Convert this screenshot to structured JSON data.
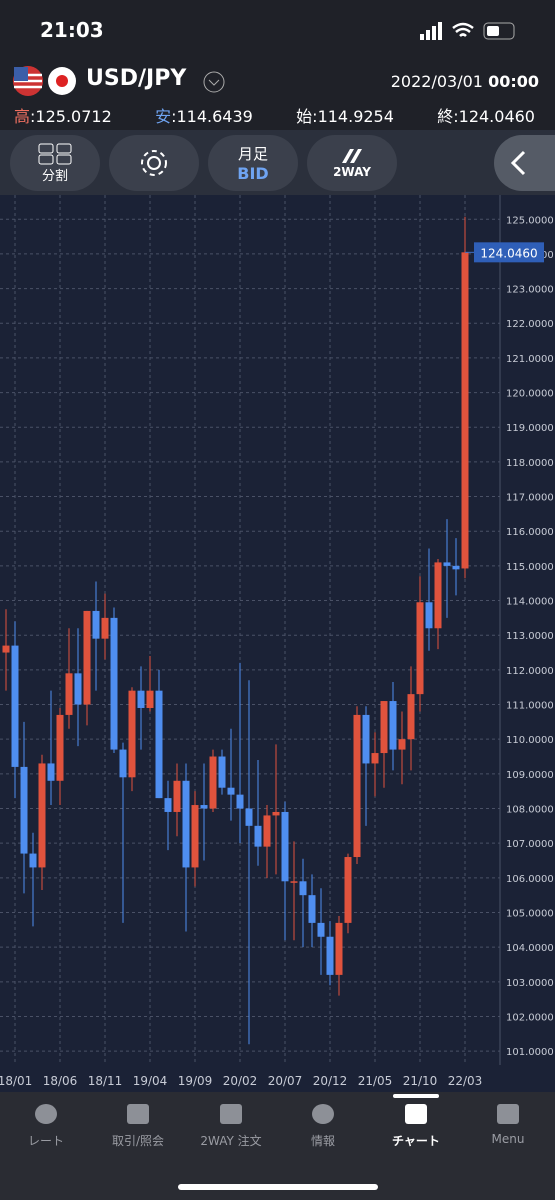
{
  "header": {
    "time": "21:03",
    "pair": "USD/JPY",
    "date": "2022/03/01",
    "clock": "00:00",
    "sep": ":",
    "ohlc": [
      {
        "label": "高",
        "value": "125.0712"
      },
      {
        "label": "安",
        "value": "114.6439"
      },
      {
        "label": "始",
        "value": "114.9254"
      },
      {
        "label": "終",
        "value": "124.0460"
      }
    ]
  },
  "toolbar": {
    "split": "分割",
    "period": "月足",
    "side": "BID",
    "way": "2WAY"
  },
  "tabs": [
    "レート",
    "取引/照会",
    "2WAY 注文",
    "情報",
    "チャート",
    "Menu"
  ],
  "chart_data": {
    "type": "candlestick",
    "up_color": "#e0533d",
    "down_color": "#4f8ef0",
    "grid": true,
    "categories": [
      null,
      "18/01",
      null,
      null,
      null,
      null,
      "18/06",
      null,
      null,
      null,
      null,
      "18/11",
      null,
      null,
      null,
      null,
      "19/04",
      null,
      null,
      null,
      null,
      "19/09",
      null,
      null,
      null,
      null,
      "20/02",
      null,
      null,
      null,
      null,
      "20/07",
      null,
      null,
      null,
      null,
      "20/12",
      null,
      null,
      null,
      null,
      "21/05",
      null,
      null,
      null,
      null,
      "21/10",
      null,
      null,
      null,
      null,
      "22/03"
    ],
    "open": [
      112.5,
      112.7,
      109.2,
      106.7,
      106.3,
      109.3,
      108.8,
      110.7,
      111.9,
      111.0,
      113.7,
      112.9,
      113.5,
      109.7,
      108.9,
      111.4,
      110.9,
      111.4,
      108.3,
      107.9,
      108.8,
      106.3,
      108.1,
      108.0,
      109.5,
      108.6,
      108.4,
      108.0,
      107.5,
      106.9,
      107.8,
      107.9,
      105.9,
      105.9,
      105.5,
      104.7,
      104.3,
      103.2,
      104.7,
      106.6,
      110.7,
      109.3,
      109.6,
      111.1,
      109.7,
      110.0,
      111.3,
      113.95,
      113.2,
      115.1,
      115.0,
      114.9254
    ],
    "high": [
      113.75,
      113.4,
      110.5,
      107.3,
      109.55,
      111.4,
      110.9,
      113.2,
      113.2,
      113.7,
      114.55,
      114.2,
      113.8,
      109.9,
      111.5,
      112.1,
      112.4,
      112.0,
      108.8,
      109.3,
      109.3,
      108.5,
      109.3,
      109.7,
      109.7,
      110.3,
      112.2,
      111.7,
      109.4,
      108.1,
      109.85,
      108.2,
      107.05,
      106.55,
      106.1,
      105.7,
      104.75,
      104.9,
      106.7,
      110.95,
      110.95,
      110.2,
      111.1,
      111.65,
      110.8,
      112.1,
      114.7,
      115.5,
      115.2,
      116.35,
      115.8,
      125.0712
    ],
    "low": [
      111.4,
      108.3,
      105.55,
      104.6,
      105.65,
      108.1,
      108.1,
      110.3,
      109.8,
      110.4,
      111.4,
      112.3,
      109.6,
      104.7,
      108.5,
      109.7,
      110.8,
      108.3,
      106.8,
      107.2,
      104.45,
      105.75,
      106.5,
      107.9,
      108.4,
      107.65,
      107.0,
      101.2,
      106.35,
      105.99,
      106.1,
      104.2,
      104.2,
      104.0,
      104.0,
      103.2,
      102.9,
      102.6,
      104.4,
      106.4,
      107.5,
      108.35,
      108.6,
      109.1,
      108.7,
      109.1,
      110.8,
      112.55,
      112.6,
      113.5,
      114.15,
      114.6439
    ],
    "close": [
      112.7,
      109.2,
      106.7,
      106.3,
      109.3,
      108.8,
      110.7,
      111.9,
      111.0,
      113.7,
      112.9,
      113.5,
      109.7,
      108.9,
      111.4,
      110.9,
      111.4,
      108.3,
      107.9,
      108.8,
      106.3,
      108.1,
      108.0,
      109.5,
      108.6,
      108.4,
      108.0,
      107.5,
      106.9,
      107.8,
      107.9,
      105.9,
      105.9,
      105.5,
      104.7,
      104.3,
      103.2,
      104.7,
      106.6,
      110.7,
      109.3,
      109.6,
      111.1,
      109.7,
      110.0,
      111.3,
      113.95,
      113.2,
      115.1,
      115.0,
      114.9,
      124.046
    ],
    "ylim": [
      100.6,
      125.7
    ],
    "yticks": [
      {
        "value": 101,
        "label": "101.0000"
      },
      {
        "value": 102,
        "label": "102.0000"
      },
      {
        "value": 103,
        "label": "103.0000"
      },
      {
        "value": 104,
        "label": "104.0000"
      },
      {
        "value": 105,
        "label": "105.0000"
      },
      {
        "value": 106,
        "label": "106.0000"
      },
      {
        "value": 107,
        "label": "107.0000"
      },
      {
        "value": 108,
        "label": "108.0000"
      },
      {
        "value": 109,
        "label": "109.0000"
      },
      {
        "value": 110,
        "label": "110.0000"
      },
      {
        "value": 111,
        "label": "111.0000"
      },
      {
        "value": 112,
        "label": "112.0000"
      },
      {
        "value": 113,
        "label": "113.0000"
      },
      {
        "value": 114,
        "label": "114.0000"
      },
      {
        "value": 115,
        "label": "115.0000"
      },
      {
        "value": 116,
        "label": "116.0000"
      },
      {
        "value": 117,
        "label": "117.0000"
      },
      {
        "value": 118,
        "label": "118.0000"
      },
      {
        "value": 119,
        "label": "119.0000"
      },
      {
        "value": 120,
        "label": "120.0000"
      },
      {
        "value": 121,
        "label": "121.0000"
      },
      {
        "value": 122,
        "label": "122.0000"
      },
      {
        "value": 123,
        "label": "123.0000"
      },
      {
        "value": 124,
        "label": "124.0000"
      },
      {
        "value": 125,
        "label": "125.0000"
      }
    ]
  }
}
